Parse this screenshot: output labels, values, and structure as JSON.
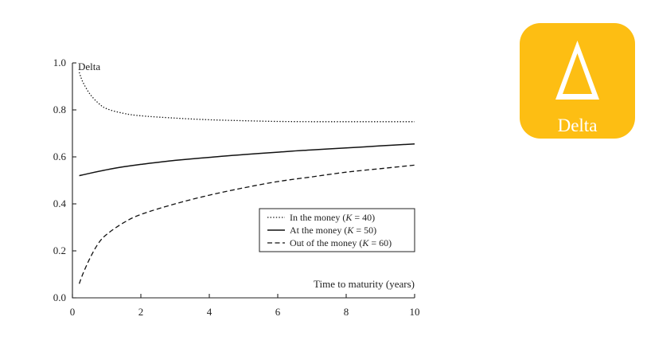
{
  "chart_data": {
    "type": "line",
    "ylabel": "Delta",
    "xlabel": "Time to maturity (years)",
    "xlim": [
      0,
      10
    ],
    "ylim": [
      0,
      1.0
    ],
    "xticks": [
      "0",
      "2",
      "4",
      "6",
      "8",
      "10"
    ],
    "yticks": [
      "0.0",
      "0.2",
      "0.4",
      "0.6",
      "0.8",
      "1.0"
    ],
    "grid": false,
    "legend_position": "lower-right",
    "series": [
      {
        "name": "In the money",
        "param": "K = 40",
        "style": "dotted",
        "x": [
          0.2,
          0.3,
          0.5,
          0.75,
          1,
          1.5,
          2,
          3,
          4,
          5,
          6,
          7,
          8,
          9,
          10
        ],
        "y": [
          0.96,
          0.92,
          0.87,
          0.83,
          0.805,
          0.785,
          0.775,
          0.765,
          0.758,
          0.754,
          0.751,
          0.75,
          0.75,
          0.75,
          0.75
        ]
      },
      {
        "name": "At the money",
        "param": "K = 50",
        "style": "solid",
        "x": [
          0.2,
          0.5,
          1,
          1.5,
          2,
          3,
          4,
          5,
          6,
          7,
          8,
          9,
          10
        ],
        "y": [
          0.52,
          0.53,
          0.545,
          0.558,
          0.568,
          0.585,
          0.598,
          0.61,
          0.62,
          0.63,
          0.638,
          0.647,
          0.655
        ]
      },
      {
        "name": "Out of the money",
        "param": "K = 60",
        "style": "dashed",
        "x": [
          0.2,
          0.3,
          0.5,
          0.75,
          1,
          1.5,
          2,
          3,
          4,
          5,
          6,
          7,
          8,
          9,
          10
        ],
        "y": [
          0.06,
          0.1,
          0.165,
          0.23,
          0.27,
          0.32,
          0.355,
          0.4,
          0.437,
          0.468,
          0.495,
          0.515,
          0.535,
          0.55,
          0.565
        ]
      }
    ]
  },
  "badge": {
    "symbol": "Δ",
    "label": "Delta",
    "color": "#FDBE13"
  }
}
